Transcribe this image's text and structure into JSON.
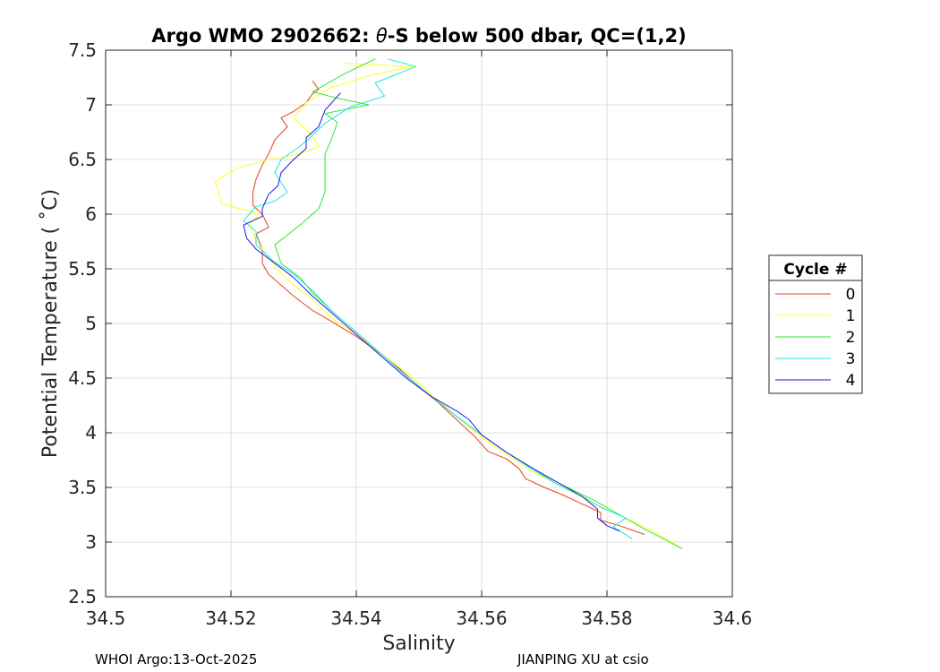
{
  "chart_data": {
    "type": "line",
    "title_pre": "Argo WMO 2902662: ",
    "title_symbol": "θ",
    "title_post": "-S below 500 dbar,  QC=(1,2)",
    "xlabel": "Salinity",
    "ylabel": "Potential Temperature ( ˚C)",
    "xlim": [
      34.5,
      34.6
    ],
    "ylim": [
      2.5,
      7.5
    ],
    "xticks": [
      "34.5",
      "34.52",
      "34.54",
      "34.56",
      "34.58",
      "34.6"
    ],
    "yticks": [
      "2.5",
      "3",
      "3.5",
      "4",
      "4.5",
      "5",
      "5.5",
      "6",
      "6.5",
      "7",
      "7.5"
    ],
    "grid": true,
    "legend": {
      "title": "Cycle #",
      "position": "outside-right"
    },
    "series": [
      {
        "name": "0",
        "color": "#e8421a",
        "points": [
          [
            34.533,
            7.22
          ],
          [
            34.534,
            7.14
          ],
          [
            34.533,
            7.1
          ],
          [
            34.532,
            7.02
          ],
          [
            34.53,
            6.94
          ],
          [
            34.528,
            6.88
          ],
          [
            34.529,
            6.8
          ],
          [
            34.527,
            6.68
          ],
          [
            34.526,
            6.55
          ],
          [
            34.525,
            6.45
          ],
          [
            34.524,
            6.32
          ],
          [
            34.5235,
            6.2
          ],
          [
            34.5235,
            6.08
          ],
          [
            34.525,
            6.0
          ],
          [
            34.526,
            5.88
          ],
          [
            34.524,
            5.82
          ],
          [
            34.525,
            5.68
          ],
          [
            34.525,
            5.55
          ],
          [
            34.526,
            5.45
          ],
          [
            34.528,
            5.35
          ],
          [
            34.53,
            5.25
          ],
          [
            34.533,
            5.12
          ],
          [
            34.536,
            5.02
          ],
          [
            34.54,
            4.88
          ],
          [
            34.544,
            4.72
          ],
          [
            34.547,
            4.58
          ],
          [
            34.55,
            4.42
          ],
          [
            34.553,
            4.28
          ],
          [
            34.556,
            4.12
          ],
          [
            34.559,
            3.96
          ],
          [
            34.561,
            3.83
          ],
          [
            34.564,
            3.76
          ],
          [
            34.566,
            3.67
          ],
          [
            34.567,
            3.58
          ],
          [
            34.57,
            3.5
          ],
          [
            34.573,
            3.43
          ],
          [
            34.576,
            3.35
          ],
          [
            34.579,
            3.27
          ],
          [
            34.579,
            3.2
          ],
          [
            34.582,
            3.15
          ],
          [
            34.584,
            3.11
          ],
          [
            34.586,
            3.07
          ]
        ]
      },
      {
        "name": "1",
        "color": "#ffff19",
        "points": [
          [
            34.538,
            7.38
          ],
          [
            34.549,
            7.35
          ],
          [
            34.543,
            7.28
          ],
          [
            34.536,
            7.16
          ],
          [
            34.532,
            7.02
          ],
          [
            34.53,
            6.88
          ],
          [
            34.533,
            6.72
          ],
          [
            34.534,
            6.62
          ],
          [
            34.531,
            6.55
          ],
          [
            34.526,
            6.5
          ],
          [
            34.521,
            6.42
          ],
          [
            34.5175,
            6.3
          ],
          [
            34.5185,
            6.1
          ],
          [
            34.5245,
            6.0
          ],
          [
            34.523,
            5.9
          ],
          [
            34.524,
            5.76
          ],
          [
            34.526,
            5.6
          ],
          [
            34.528,
            5.46
          ],
          [
            34.53,
            5.35
          ],
          [
            34.533,
            5.22
          ],
          [
            34.536,
            5.05
          ],
          [
            34.54,
            4.9
          ],
          [
            34.544,
            4.72
          ],
          [
            34.548,
            4.55
          ],
          [
            34.552,
            4.35
          ],
          [
            34.556,
            4.15
          ],
          [
            34.56,
            3.96
          ],
          [
            34.564,
            3.8
          ],
          [
            34.568,
            3.65
          ],
          [
            34.573,
            3.5
          ],
          [
            34.578,
            3.35
          ],
          [
            34.583,
            3.22
          ],
          [
            34.588,
            3.08
          ],
          [
            34.592,
            2.94
          ]
        ]
      },
      {
        "name": "2",
        "color": "#33e633",
        "points": [
          [
            34.543,
            7.42
          ],
          [
            34.538,
            7.28
          ],
          [
            34.533,
            7.12
          ],
          [
            34.537,
            7.06
          ],
          [
            34.542,
            7.0
          ],
          [
            34.535,
            6.92
          ],
          [
            34.537,
            6.84
          ],
          [
            34.536,
            6.68
          ],
          [
            34.535,
            6.55
          ],
          [
            34.535,
            6.4
          ],
          [
            34.535,
            6.2
          ],
          [
            34.534,
            6.05
          ],
          [
            34.531,
            5.9
          ],
          [
            34.527,
            5.72
          ],
          [
            34.528,
            5.55
          ],
          [
            34.531,
            5.42
          ],
          [
            34.533,
            5.28
          ],
          [
            34.536,
            5.12
          ],
          [
            34.54,
            4.92
          ],
          [
            34.544,
            4.72
          ],
          [
            34.548,
            4.52
          ],
          [
            34.552,
            4.33
          ],
          [
            34.556,
            4.15
          ],
          [
            34.56,
            3.98
          ],
          [
            34.564,
            3.82
          ],
          [
            34.568,
            3.67
          ],
          [
            34.573,
            3.52
          ],
          [
            34.578,
            3.38
          ],
          [
            34.582,
            3.25
          ],
          [
            34.586,
            3.12
          ],
          [
            34.589,
            3.03
          ],
          [
            34.592,
            2.94
          ]
        ]
      },
      {
        "name": "3",
        "color": "#1ae6e6",
        "points": [
          [
            34.545,
            7.42
          ],
          [
            34.5495,
            7.35
          ],
          [
            34.543,
            7.2
          ],
          [
            34.5445,
            7.08
          ],
          [
            34.539,
            6.98
          ],
          [
            34.535,
            6.83
          ],
          [
            34.533,
            6.72
          ],
          [
            34.531,
            6.62
          ],
          [
            34.528,
            6.5
          ],
          [
            34.527,
            6.38
          ],
          [
            34.529,
            6.2
          ],
          [
            34.527,
            6.12
          ],
          [
            34.524,
            6.07
          ],
          [
            34.522,
            5.94
          ],
          [
            34.524,
            5.84
          ],
          [
            34.524,
            5.72
          ],
          [
            34.527,
            5.56
          ],
          [
            34.53,
            5.45
          ],
          [
            34.533,
            5.3
          ],
          [
            34.536,
            5.12
          ],
          [
            34.54,
            4.92
          ],
          [
            34.544,
            4.72
          ],
          [
            34.548,
            4.52
          ],
          [
            34.552,
            4.33
          ],
          [
            34.556,
            4.15
          ],
          [
            34.56,
            3.98
          ],
          [
            34.564,
            3.82
          ],
          [
            34.568,
            3.67
          ],
          [
            34.572,
            3.53
          ],
          [
            34.576,
            3.42
          ],
          [
            34.579,
            3.32
          ],
          [
            34.583,
            3.22
          ],
          [
            34.581,
            3.14
          ],
          [
            34.584,
            3.03
          ]
        ]
      },
      {
        "name": "4",
        "color": "#1a1ae6",
        "points": [
          [
            34.5375,
            7.11
          ],
          [
            34.535,
            6.95
          ],
          [
            34.534,
            6.8
          ],
          [
            34.532,
            6.7
          ],
          [
            34.532,
            6.6
          ],
          [
            34.53,
            6.5
          ],
          [
            34.528,
            6.38
          ],
          [
            34.5275,
            6.26
          ],
          [
            34.526,
            6.18
          ],
          [
            34.525,
            6.05
          ],
          [
            34.525,
            5.98
          ],
          [
            34.522,
            5.9
          ],
          [
            34.5225,
            5.78
          ],
          [
            34.524,
            5.68
          ],
          [
            34.527,
            5.55
          ],
          [
            34.53,
            5.42
          ],
          [
            34.533,
            5.25
          ],
          [
            34.536,
            5.1
          ],
          [
            34.54,
            4.9
          ],
          [
            34.544,
            4.7
          ],
          [
            34.548,
            4.5
          ],
          [
            34.552,
            4.33
          ],
          [
            34.556,
            4.2
          ],
          [
            34.558,
            4.12
          ],
          [
            34.56,
            3.98
          ],
          [
            34.564,
            3.82
          ],
          [
            34.568,
            3.68
          ],
          [
            34.572,
            3.55
          ],
          [
            34.576,
            3.42
          ],
          [
            34.5785,
            3.3
          ],
          [
            34.5785,
            3.22
          ],
          [
            34.58,
            3.15
          ],
          [
            34.582,
            3.1
          ]
        ]
      }
    ]
  },
  "footer": {
    "left": "WHOI Argo:13-Oct-2025",
    "right": "JIANPING XU at csio"
  }
}
